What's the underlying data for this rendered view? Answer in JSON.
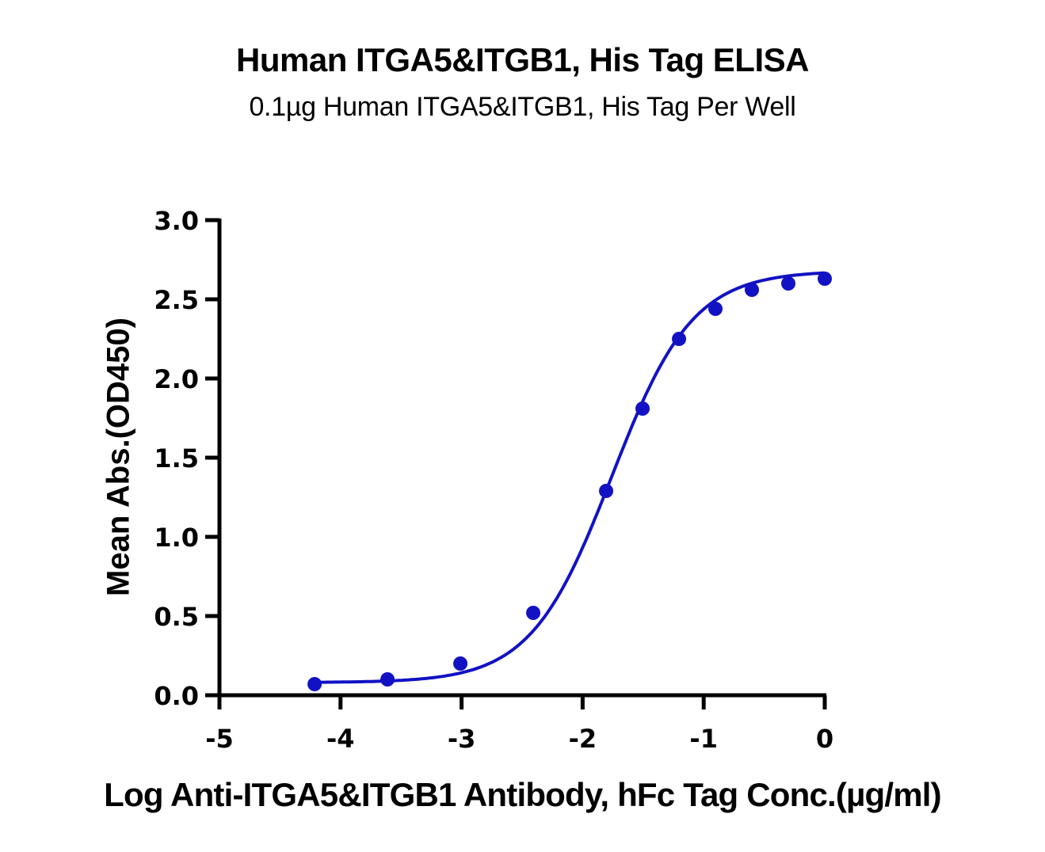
{
  "chart_data": {
    "type": "scatter",
    "title": "Human ITGA5&ITGB1, His Tag ELISA",
    "subtitle": "0.1µg Human ITGA5&ITGB1, His Tag Per Well",
    "xlabel": "Log Anti-ITGA5&ITGB1 Antibody, hFc Tag Conc.(µg/ml)",
    "ylabel": "Mean Abs.(OD450)",
    "xlim": [
      -5,
      0
    ],
    "ylim": [
      0,
      3.0
    ],
    "x_ticks": [
      "-5",
      "-4",
      "-3",
      "-2",
      "-1",
      "0"
    ],
    "y_ticks": [
      "0.0",
      "0.5",
      "1.0",
      "1.5",
      "2.0",
      "2.5",
      "3.0"
    ],
    "grid": false,
    "legend": null,
    "series": [
      {
        "name": "Anti-ITGA5&ITGB1 Antibody, hFc Tag",
        "color": "#1212C4",
        "x": [
          -4.214,
          -3.612,
          -3.01,
          -2.408,
          -1.806,
          -1.505,
          -1.204,
          -0.903,
          -0.602,
          -0.301,
          0.0
        ],
        "y": [
          0.07,
          0.1,
          0.2,
          0.52,
          1.29,
          1.81,
          2.25,
          2.44,
          2.56,
          2.6,
          2.63
        ],
        "fit": {
          "model": "4PL",
          "bottom": 0.08,
          "top": 2.68,
          "log_ec50": -1.76,
          "hill": 1.3
        }
      }
    ]
  }
}
